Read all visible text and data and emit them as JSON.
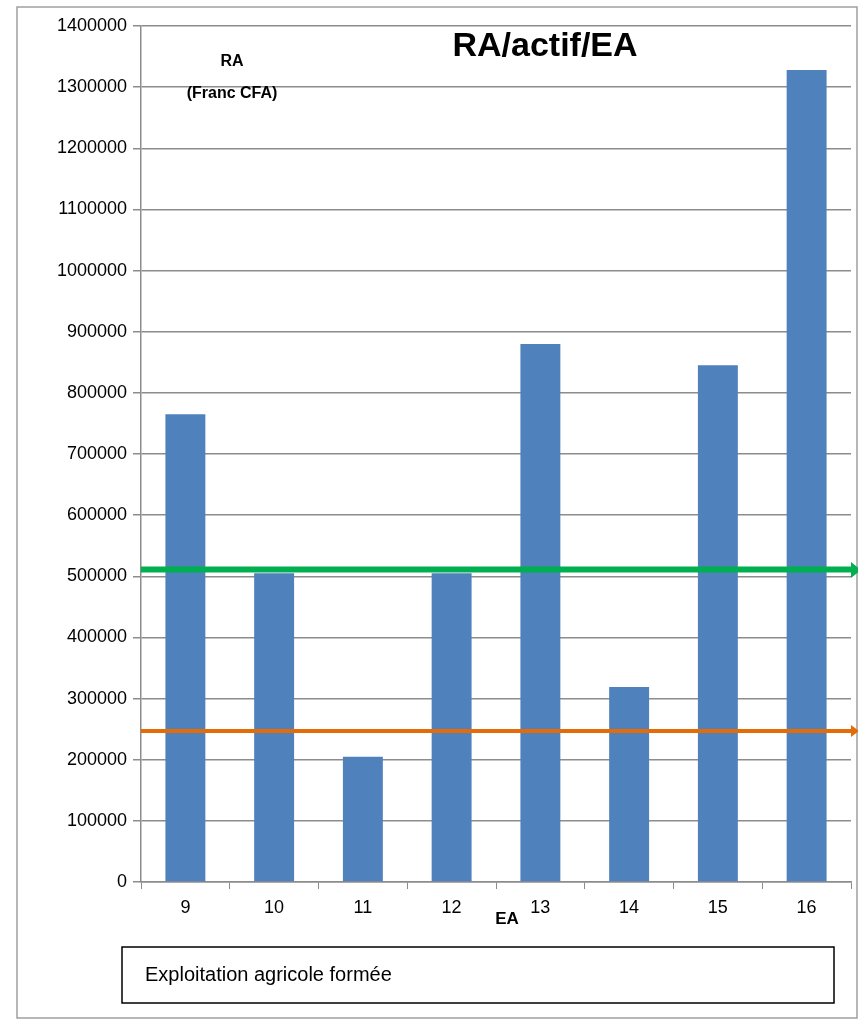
{
  "chart_data": {
    "type": "bar",
    "title": "RA/actif/EA",
    "ylabel": "RA\n(Franc CFA)",
    "xlabel": "EA",
    "categories": [
      "9",
      "10",
      "11",
      "12",
      "13",
      "14",
      "15",
      "16"
    ],
    "values": [
      765000,
      505000,
      205000,
      505000,
      880000,
      319000,
      845000,
      1328000
    ],
    "color": "#4f81bd",
    "ylim": [
      0,
      1400000
    ],
    "yticks": [
      0,
      100000,
      200000,
      300000,
      400000,
      500000,
      600000,
      700000,
      800000,
      900000,
      1000000,
      1100000,
      1200000,
      1300000,
      1400000
    ],
    "grid": "y",
    "legend": false,
    "ref_lines": [
      {
        "axis": "y",
        "value": 511000,
        "color": "#00b050"
      },
      {
        "axis": "y",
        "value": 247000,
        "color": "#e36c09"
      }
    ],
    "annotations": [
      "Exploitation agricole formée"
    ]
  }
}
